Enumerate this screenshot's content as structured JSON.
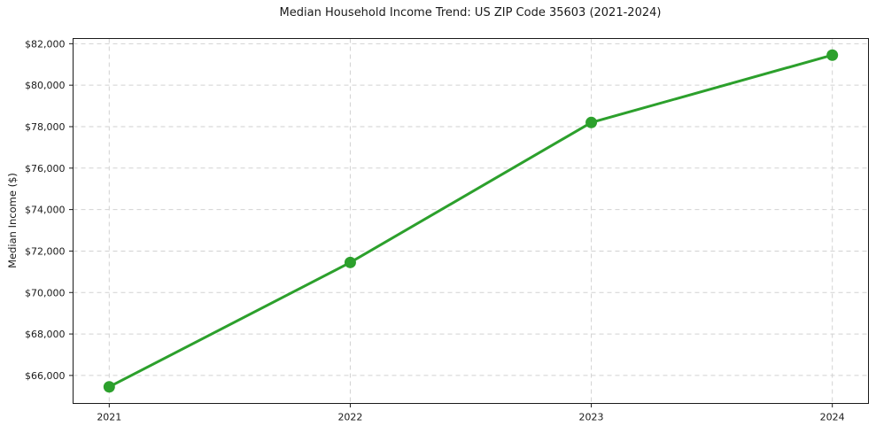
{
  "chart_data": {
    "type": "line",
    "title": "Median Household Income Trend: US ZIP Code 35603 (2021-2024)",
    "xlabel": "",
    "ylabel": "Median Income ($)",
    "x": [
      2021,
      2022,
      2023,
      2024
    ],
    "xtick_labels": [
      "2021",
      "2022",
      "2023",
      "2024"
    ],
    "series": [
      {
        "name": "Median Household Income",
        "values": [
          65450,
          71450,
          78200,
          81450
        ]
      }
    ],
    "ytick_values": [
      66000,
      68000,
      70000,
      72000,
      74000,
      76000,
      78000,
      80000,
      82000
    ],
    "ytick_labels": [
      "$66,000",
      "$68,000",
      "$70,000",
      "$72,000",
      "$74,000",
      "$76,000",
      "$78,000",
      "$80,000",
      "$82,000"
    ],
    "xlim": [
      2020.85,
      2024.15
    ],
    "ylim": [
      64650,
      82250
    ],
    "grid": true,
    "gridline_style": "dashed",
    "legend_position": "none",
    "line_color": "#2ca02c",
    "marker": "circle",
    "background_color": "#ffffff",
    "axis_color": "#1a1a1a"
  }
}
